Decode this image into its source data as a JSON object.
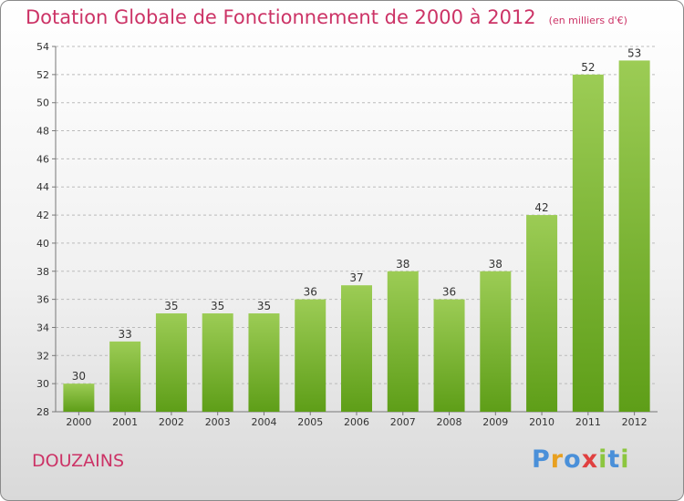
{
  "header": {
    "title": "Dotation Globale de Fonctionnement de 2000 à 2012",
    "subtitle": "(en milliers d'€)"
  },
  "commune": "DOUZAINS",
  "logo": {
    "text": "Proxiti",
    "letter_colors": [
      "#4a90d9",
      "#e8a020",
      "#4a90d9",
      "#e04040",
      "#8cc63f",
      "#4a90d9",
      "#8cc63f"
    ]
  },
  "colors": {
    "title": "#cc3366",
    "bar_top": "#9ccc55",
    "bar_bottom": "#5e9e18"
  },
  "chart_data": {
    "type": "bar",
    "categories": [
      "2000",
      "2001",
      "2002",
      "2003",
      "2004",
      "2005",
      "2006",
      "2007",
      "2008",
      "2009",
      "2010",
      "2011",
      "2012"
    ],
    "values": [
      30,
      33,
      35,
      35,
      35,
      36,
      37,
      38,
      36,
      38,
      42,
      52,
      53
    ],
    "ylim": [
      28,
      54
    ],
    "yticks": [
      28,
      30,
      32,
      34,
      36,
      38,
      40,
      42,
      44,
      46,
      48,
      50,
      52,
      54
    ],
    "grid": "dashed-horizontal"
  }
}
